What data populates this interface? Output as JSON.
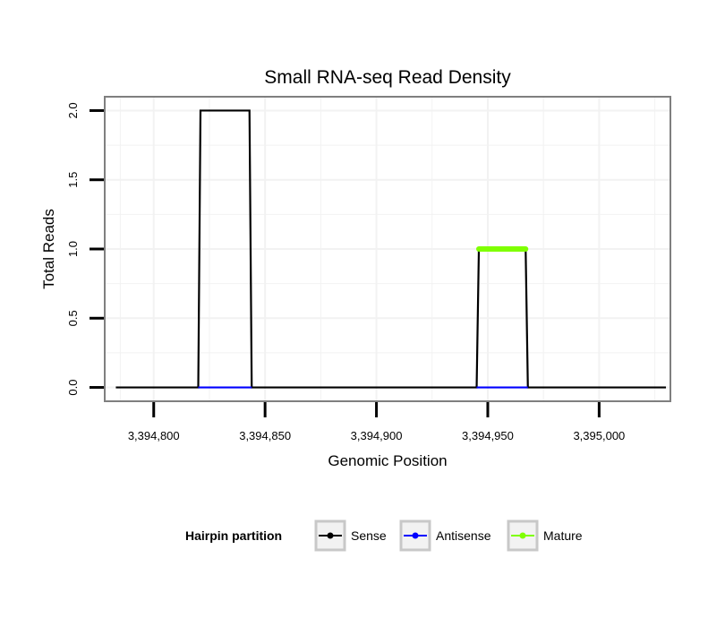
{
  "chart_data": {
    "type": "line",
    "title": "Small RNA-seq Read Density",
    "xlabel": "Genomic Position",
    "ylabel": "Total Reads",
    "xlim": [
      3394778,
      3395032
    ],
    "ylim": [
      -0.1,
      2.1
    ],
    "x_ticks": [
      3394800,
      3394850,
      3394900,
      3394950,
      3395000
    ],
    "x_tick_labels": [
      "3,394,800",
      "3,394,850",
      "3,394,900",
      "3,394,950",
      "3,395,000"
    ],
    "y_ticks": [
      0,
      0.5,
      1,
      1.5,
      2
    ],
    "y_tick_labels": [
      "0.0",
      "0.5",
      "1.0",
      "1.5",
      "2.0"
    ],
    "grid": true,
    "legend_position": "bottom",
    "legend_title": "Hairpin partition",
    "series": [
      {
        "name": "Sense",
        "color": "#000000",
        "x": [
          3394783,
          3394820,
          3394821,
          3394843,
          3394844,
          3394945,
          3394946,
          3394967,
          3394968,
          3395030
        ],
        "y": [
          0,
          0,
          2,
          2,
          0,
          0,
          1,
          1,
          0,
          0
        ]
      },
      {
        "name": "Antisense",
        "color": "#0000ff",
        "x": [
          3394820,
          3394844
        ],
        "y": [
          0,
          0
        ],
        "segments": [
          [
            3394820,
            3394844
          ],
          [
            3394945,
            3394968
          ]
        ]
      },
      {
        "name": "Mature",
        "color": "#7fff00",
        "x": [
          3394946,
          3394967
        ],
        "y": [
          1,
          1
        ]
      }
    ]
  }
}
